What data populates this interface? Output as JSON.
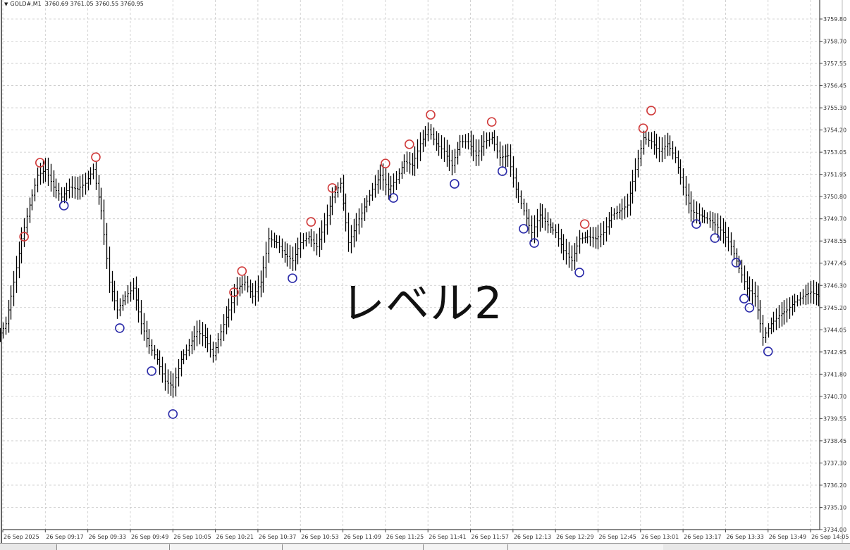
{
  "header": {
    "symbol": "GOLD#,M1",
    "ohlc": "3760.69 3761.05 3760.55 3760.95",
    "dropdown_icon": "triangle-down-icon"
  },
  "overlay_text": "レベル2",
  "colors": {
    "bars": "#000000",
    "grid": "#c8c8c8",
    "high_marker": "#d03a3a",
    "low_marker": "#2a2aa8"
  },
  "chart_data": {
    "type": "bar",
    "title": "",
    "y_ticks": [
      "3759.80",
      "3758.70",
      "3757.55",
      "3756.45",
      "3755.30",
      "3754.20",
      "3753.05",
      "3751.95",
      "3750.80",
      "3749.70",
      "3748.55",
      "3747.45",
      "3746.30",
      "3745.20",
      "3744.05",
      "3742.95",
      "3741.80",
      "3740.70",
      "3739.55",
      "3738.45",
      "3737.30",
      "3736.20",
      "3735.10",
      "3734.00"
    ],
    "ylim": [
      3734.0,
      3759.8
    ],
    "x_ticks": [
      "26 Sep 2025",
      "26 Sep 09:17",
      "26 Sep 09:33",
      "26 Sep 09:49",
      "26 Sep 10:05",
      "26 Sep 10:21",
      "26 Sep 10:37",
      "26 Sep 10:53",
      "26 Sep 11:09",
      "26 Sep 11:25",
      "26 Sep 11:41",
      "26 Sep 11:57",
      "26 Sep 12:13",
      "26 Sep 12:29",
      "26 Sep 12:45",
      "26 Sep 13:01",
      "26 Sep 13:17",
      "26 Sep 13:33",
      "26 Sep 13:49",
      "26 Sep 14:05"
    ],
    "grid": true,
    "series": [
      {
        "x": [
          "09:00",
          "09:03",
          "09:06",
          "09:09",
          "09:12",
          "09:15",
          "09:18",
          "09:21",
          "09:24",
          "09:27",
          "09:30",
          "09:33",
          "09:36",
          "09:39",
          "09:42",
          "09:45",
          "09:48",
          "09:51",
          "09:54",
          "09:57",
          "10:00",
          "10:03",
          "10:06",
          "10:09",
          "10:12",
          "10:15",
          "10:18",
          "10:21",
          "10:24",
          "10:27",
          "10:30",
          "10:33",
          "10:36",
          "10:39",
          "10:42",
          "10:45",
          "10:48",
          "10:51",
          "10:54",
          "10:57",
          "11:00",
          "11:03",
          "11:06",
          "11:09",
          "11:12",
          "11:15",
          "11:18",
          "11:21",
          "11:24",
          "11:27",
          "11:30",
          "11:33",
          "11:36",
          "11:39",
          "11:42",
          "11:45",
          "11:48",
          "11:51",
          "11:54",
          "11:57",
          "12:00",
          "12:03",
          "12:06",
          "12:09",
          "12:12",
          "12:15",
          "12:18",
          "12:21",
          "12:24",
          "12:27",
          "12:30",
          "12:33",
          "12:36",
          "12:39",
          "12:42",
          "12:45",
          "12:48",
          "12:51",
          "12:54",
          "12:57",
          "13:00",
          "13:03",
          "13:06",
          "13:09",
          "13:12",
          "13:15",
          "13:18",
          "13:21",
          "13:24",
          "13:27",
          "13:30",
          "13:33",
          "13:36",
          "13:39",
          "13:42",
          "13:45",
          "13:48",
          "13:51",
          "13:54",
          "13:57",
          "14:00",
          "14:03",
          "14:06",
          "14:09"
        ],
        "close": [
          3743.7,
          3744.4,
          3746.5,
          3748.7,
          3750.4,
          3751.9,
          3752.2,
          3751.3,
          3750.8,
          3751.3,
          3751.2,
          3751.5,
          3752.2,
          3750.1,
          3746.5,
          3745.1,
          3745.8,
          3746.2,
          3744.4,
          3743.3,
          3742.6,
          3741.5,
          3741.2,
          3742.6,
          3743.3,
          3744.0,
          3743.7,
          3742.8,
          3744.0,
          3745.1,
          3746.2,
          3746.5,
          3745.8,
          3746.5,
          3748.7,
          3748.5,
          3747.9,
          3747.6,
          3748.5,
          3748.8,
          3748.3,
          3749.4,
          3750.8,
          3751.5,
          3748.5,
          3749.4,
          3750.3,
          3751.2,
          3751.9,
          3751.2,
          3751.7,
          3752.6,
          3752.4,
          3753.5,
          3754.2,
          3753.5,
          3753.1,
          3752.4,
          3753.6,
          3753.6,
          3752.9,
          3753.6,
          3753.8,
          3752.8,
          3752.9,
          3751.2,
          3750.1,
          3749.0,
          3749.9,
          3749.4,
          3749.0,
          3748.1,
          3747.6,
          3748.7,
          3748.8,
          3748.7,
          3749.0,
          3749.9,
          3750.1,
          3750.4,
          3752.2,
          3753.8,
          3753.6,
          3753.1,
          3753.5,
          3752.8,
          3751.3,
          3750.1,
          3749.9,
          3749.7,
          3749.4,
          3749.0,
          3748.3,
          3747.2,
          3746.2,
          3745.8,
          3743.7,
          3744.4,
          3744.8,
          3745.1,
          3745.5,
          3745.8,
          3746.0,
          3745.8
        ]
      }
    ],
    "high_markers": [
      [
        "09:09",
        3748.8
      ],
      [
        "09:15",
        3752.54
      ],
      [
        "09:36",
        3752.82
      ],
      [
        "10:28",
        3745.99
      ],
      [
        "10:31",
        3747.06
      ],
      [
        "10:57",
        3749.55
      ],
      [
        "11:05",
        3751.26
      ],
      [
        "11:25",
        3752.5
      ],
      [
        "11:34",
        3753.47
      ],
      [
        "11:42",
        3754.96
      ],
      [
        "12:05",
        3754.6
      ],
      [
        "12:40",
        3749.44
      ],
      [
        "13:02",
        3754.28
      ],
      [
        "13:05",
        3755.17
      ]
    ],
    "low_markers": [
      [
        "09:24",
        3750.37
      ],
      [
        "09:45",
        3744.18
      ],
      [
        "09:57",
        3742.01
      ],
      [
        "10:05",
        3739.84
      ],
      [
        "10:50",
        3746.7
      ],
      [
        "11:28",
        3750.76
      ],
      [
        "11:51",
        3751.47
      ],
      [
        "12:09",
        3752.11
      ],
      [
        "12:17",
        3749.2
      ],
      [
        "12:21",
        3748.48
      ],
      [
        "12:38",
        3746.99
      ],
      [
        "13:22",
        3749.44
      ],
      [
        "13:29",
        3748.73
      ],
      [
        "13:37",
        3747.49
      ],
      [
        "13:40",
        3745.67
      ],
      [
        "13:42",
        3745.21
      ],
      [
        "13:49",
        3743.0
      ]
    ]
  }
}
